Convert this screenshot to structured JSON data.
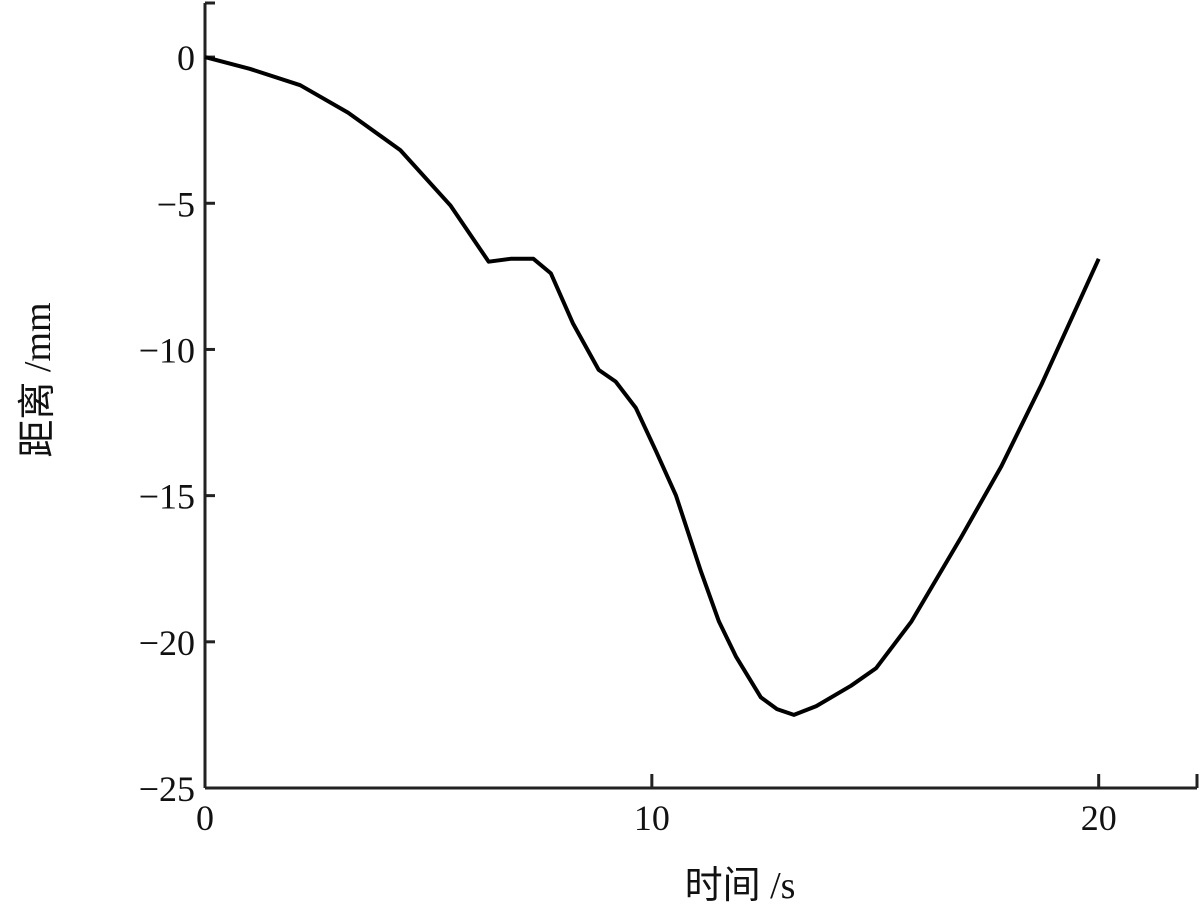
{
  "chart_data": {
    "type": "line",
    "title": "",
    "xlabel": "时间 /s",
    "ylabel": "距离 /mm",
    "xlim": [
      0,
      22.2
    ],
    "ylim": [
      -25,
      1.85
    ],
    "xticks": [
      0,
      10,
      20
    ],
    "xtick_labels": [
      "0",
      "10",
      "20"
    ],
    "yticks": [
      0,
      -5,
      -10,
      -15,
      -20,
      -25
    ],
    "ytick_labels": [
      "0",
      "−5",
      "−10",
      "−15",
      "−20",
      "−25"
    ],
    "grid": false,
    "line_color": "#000000",
    "series": [
      {
        "x": [
          0,
          1.0,
          2.13,
          3.2,
          4.37,
          5.49,
          6.35,
          6.84,
          7.35,
          7.74,
          8.23,
          8.81,
          9.19,
          9.64,
          10.1,
          10.54,
          11.1,
          11.5,
          11.88,
          12.44,
          12.8,
          13.18,
          13.68,
          14.46,
          15.02,
          15.81,
          16.93,
          17.82,
          18.72,
          20.0
        ],
        "y": [
          0,
          -0.4,
          -0.96,
          -1.9,
          -3.18,
          -5.07,
          -7.0,
          -6.9,
          -6.9,
          -7.4,
          -9.1,
          -10.7,
          -11.1,
          -12.0,
          -13.5,
          -15.0,
          -17.6,
          -19.3,
          -20.5,
          -21.9,
          -22.3,
          -22.5,
          -22.2,
          -21.5,
          -20.9,
          -19.3,
          -16.4,
          -14.0,
          -11.2,
          -6.9
        ]
      }
    ]
  }
}
